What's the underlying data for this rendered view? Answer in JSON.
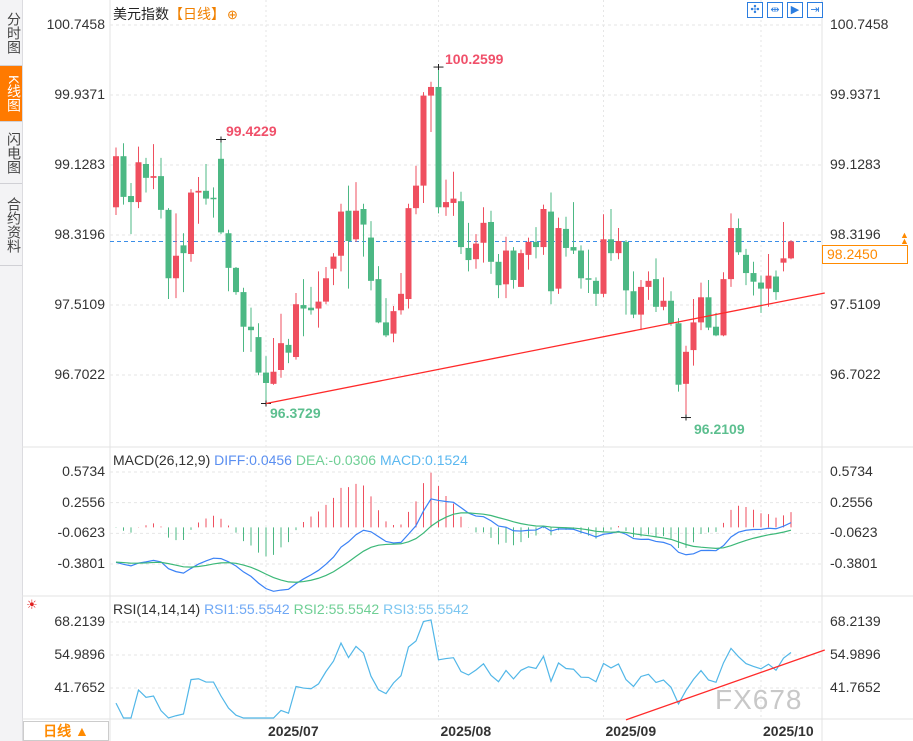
{
  "sidebar": {
    "tabs": [
      {
        "label": "分时图",
        "active": false
      },
      {
        "label": "K线图",
        "active": true
      },
      {
        "label": "闪电图",
        "active": false
      },
      {
        "label": "合约资料",
        "active": false
      }
    ]
  },
  "header": {
    "symbol": "美元指数",
    "period": "【日线】",
    "add_icon": "plus-circle-icon"
  },
  "toolbar": {
    "icons": [
      "crosshair-icon",
      "zoom-range-icon",
      "play-forward-icon",
      "jump-to-end-icon"
    ],
    "glyphs": [
      "✣",
      "⇹",
      "▶",
      "⇥"
    ]
  },
  "colors": {
    "up": "#ef4f5f",
    "down": "#4cb884",
    "accent": "#ff7a00",
    "diff": "#3b82f6",
    "dea": "#3cb878",
    "rsi": "#52b7e8",
    "trendline": "#ff2a2a",
    "last_price_line": "#3b8ee8"
  },
  "period_selector": {
    "label": "日线 ▲"
  },
  "watermark": "FX678",
  "chart_data": [
    {
      "type": "candlestick",
      "title": "美元指数",
      "y_ticks": [
        "100.7458",
        "99.9371",
        "99.1283",
        "98.3196",
        "97.5109",
        "96.7022"
      ],
      "ylim": [
        96.7022,
        100.7458
      ],
      "x_ticks": [
        {
          "label": "2025/07",
          "index": 20
        },
        {
          "label": "2025/08",
          "index": 43
        },
        {
          "label": "2025/09",
          "index": 65
        },
        {
          "label": "2025/10",
          "index": 86
        }
      ],
      "grid": true,
      "last_price": "98.2450",
      "annotations": [
        {
          "text": "99.4229",
          "index": 14,
          "price": 99.4229,
          "kind": "high"
        },
        {
          "text": "100.2599",
          "index": 43,
          "price": 100.2599,
          "kind": "high"
        },
        {
          "text": "96.3729",
          "index": 20,
          "price": 96.3729,
          "kind": "low"
        },
        {
          "text": "96.2109",
          "index": 76,
          "price": 96.2109,
          "kind": "low"
        }
      ],
      "trendline": {
        "from": {
          "index": 20,
          "price": 96.3729
        },
        "to": {
          "index": 94.5,
          "price": 97.65
        }
      },
      "ohlc": [
        [
          98.64,
          99.33,
          98.55,
          99.23
        ],
        [
          99.23,
          99.38,
          98.67,
          98.76
        ],
        [
          98.77,
          98.92,
          98.33,
          98.7
        ],
        [
          98.7,
          99.34,
          98.63,
          99.16
        ],
        [
          99.14,
          99.21,
          98.81,
          98.98
        ],
        [
          98.98,
          99.37,
          98.85,
          99.0
        ],
        [
          99.0,
          99.21,
          98.51,
          98.61
        ],
        [
          98.61,
          98.63,
          97.58,
          97.82
        ],
        [
          97.82,
          98.57,
          97.59,
          98.08
        ],
        [
          98.2,
          98.34,
          97.66,
          98.11
        ],
        [
          98.1,
          98.85,
          98.01,
          98.81
        ],
        [
          98.81,
          98.99,
          98.45,
          98.83
        ],
        [
          98.83,
          99.14,
          98.67,
          98.74
        ],
        [
          98.75,
          98.87,
          98.52,
          98.74
        ],
        [
          99.2,
          99.4229,
          98.33,
          98.35
        ],
        [
          98.34,
          98.38,
          97.67,
          97.94
        ],
        [
          97.94,
          97.95,
          97.63,
          97.66
        ],
        [
          97.66,
          97.71,
          96.97,
          97.26
        ],
        [
          97.26,
          97.48,
          96.97,
          97.22
        ],
        [
          97.14,
          97.3,
          96.7,
          96.73
        ],
        [
          96.73,
          96.92,
          96.3729,
          96.61
        ],
        [
          96.6,
          97.13,
          96.59,
          96.74
        ],
        [
          96.76,
          97.41,
          96.67,
          97.07
        ],
        [
          97.05,
          97.12,
          96.84,
          96.96
        ],
        [
          96.91,
          97.65,
          96.88,
          97.52
        ],
        [
          97.51,
          97.81,
          97.15,
          97.47
        ],
        [
          97.48,
          97.72,
          97.4,
          97.45
        ],
        [
          97.47,
          97.9,
          97.25,
          97.55
        ],
        [
          97.55,
          97.95,
          97.52,
          97.82
        ],
        [
          97.93,
          98.11,
          97.74,
          98.07
        ],
        [
          98.08,
          98.68,
          97.9,
          98.59
        ],
        [
          98.6,
          98.89,
          97.7,
          98.25
        ],
        [
          98.27,
          98.93,
          98.24,
          98.6
        ],
        [
          98.62,
          98.68,
          98.07,
          98.44
        ],
        [
          98.29,
          98.48,
          97.68,
          97.79
        ],
        [
          97.81,
          97.96,
          97.3,
          97.31
        ],
        [
          97.31,
          97.59,
          97.14,
          97.16
        ],
        [
          97.18,
          97.5,
          97.08,
          97.44
        ],
        [
          97.45,
          97.88,
          97.4,
          97.64
        ],
        [
          97.58,
          98.68,
          97.47,
          98.63
        ],
        [
          98.63,
          99.12,
          98.56,
          98.89
        ],
        [
          98.89,
          99.97,
          98.69,
          99.93
        ],
        [
          99.93,
          100.09,
          99.51,
          100.03
        ],
        [
          100.03,
          100.2599,
          98.57,
          98.64
        ],
        [
          98.64,
          98.96,
          98.54,
          98.7
        ],
        [
          98.69,
          99.05,
          98.54,
          98.74
        ],
        [
          98.71,
          98.82,
          98.1,
          98.18
        ],
        [
          98.17,
          98.46,
          97.9,
          98.03
        ],
        [
          98.04,
          98.33,
          97.93,
          98.22
        ],
        [
          98.23,
          98.64,
          98.0,
          98.46
        ],
        [
          98.47,
          98.6,
          97.87,
          98.01
        ],
        [
          98.01,
          98.1,
          97.59,
          97.74
        ],
        [
          97.75,
          98.3,
          97.59,
          98.14
        ],
        [
          98.14,
          98.18,
          97.7,
          97.8
        ],
        [
          97.72,
          98.15,
          97.72,
          98.11
        ],
        [
          98.09,
          98.29,
          97.92,
          98.24
        ],
        [
          98.24,
          98.41,
          98.05,
          98.18
        ],
        [
          98.18,
          98.67,
          98.09,
          98.62
        ],
        [
          98.59,
          98.81,
          97.52,
          97.67
        ],
        [
          97.7,
          98.52,
          97.64,
          98.4
        ],
        [
          98.39,
          98.53,
          98.07,
          98.17
        ],
        [
          98.18,
          98.7,
          98.1,
          98.14
        ],
        [
          98.14,
          98.2,
          97.7,
          97.82
        ],
        [
          97.82,
          98.15,
          97.65,
          97.81
        ],
        [
          97.79,
          97.83,
          97.5,
          97.64
        ],
        [
          97.64,
          98.56,
          97.6,
          98.27
        ],
        [
          98.27,
          98.62,
          98.02,
          98.11
        ],
        [
          98.11,
          98.4,
          98.04,
          98.25
        ],
        [
          98.24,
          98.26,
          97.4,
          97.68
        ],
        [
          97.67,
          97.9,
          97.36,
          97.4
        ],
        [
          97.4,
          97.8,
          97.22,
          97.72
        ],
        [
          97.72,
          97.9,
          97.57,
          97.79
        ],
        [
          97.81,
          98.05,
          97.43,
          97.49
        ],
        [
          97.49,
          97.83,
          97.45,
          97.56
        ],
        [
          97.56,
          97.67,
          97.27,
          97.3
        ],
        [
          97.3,
          97.36,
          96.51,
          96.59
        ],
        [
          96.6,
          97.04,
          96.2109,
          96.97
        ],
        [
          96.99,
          97.58,
          96.81,
          97.31
        ],
        [
          97.31,
          97.77,
          97.22,
          97.6
        ],
        [
          97.6,
          97.8,
          97.22,
          97.25
        ],
        [
          97.26,
          97.42,
          97.15,
          97.16
        ],
        [
          97.16,
          97.89,
          97.15,
          97.81
        ],
        [
          97.81,
          98.57,
          97.72,
          98.4
        ],
        [
          98.4,
          98.51,
          98.09,
          98.12
        ],
        [
          98.09,
          98.16,
          97.74,
          97.88
        ],
        [
          97.88,
          98.01,
          97.62,
          97.78
        ],
        [
          97.77,
          97.85,
          97.42,
          97.7
        ],
        [
          97.7,
          98.1,
          97.49,
          97.85
        ],
        [
          97.84,
          97.91,
          97.57,
          97.66
        ],
        [
          98.0,
          98.47,
          97.9,
          98.05
        ],
        [
          98.05,
          98.26,
          98.04,
          98.245
        ]
      ]
    },
    {
      "type": "macd",
      "title": "MACD(26,12,9)",
      "labels": {
        "diff": "DIFF:0.0456",
        "dea": "DEA:-0.0306",
        "macd": "MACD:0.1524"
      },
      "y_ticks": [
        "0.5734",
        "0.2556",
        "-0.0623",
        "-0.3801"
      ],
      "ylim": [
        -0.3801,
        0.5734
      ]
    },
    {
      "type": "rsi",
      "title": "RSI(14,14,14)",
      "labels": {
        "rsi1": "RSI1:55.5542",
        "rsi2": "RSI2:55.5542",
        "rsi3": "RSI3:55.5542"
      },
      "y_ticks": [
        "68.2139",
        "54.9896",
        "41.7652"
      ],
      "ylim": [
        41.7652,
        68.2139
      ],
      "trendline": {
        "from": {
          "index": 68,
          "value": 29
        },
        "to": {
          "index": 94.5,
          "value": 57
        }
      }
    }
  ]
}
